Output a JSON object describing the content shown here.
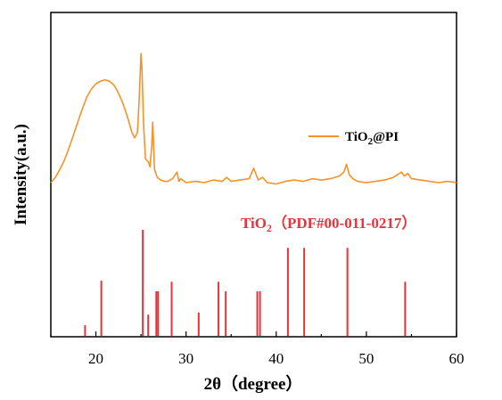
{
  "chart_data": {
    "type": "line",
    "xlabel": "2θ（degree）",
    "ylabel": "Intensity(a.u.)",
    "xlim": [
      15,
      60
    ],
    "x_ticks": [
      "20",
      "30",
      "40",
      "50",
      "60"
    ],
    "grid": false,
    "legend_position": "right",
    "series": [
      {
        "name": "TiO2@PI",
        "legend_main": "TiO",
        "legend_sub": "2",
        "legend_tail": "@PI",
        "color": "#f5922a",
        "x": [
          15.0,
          15.5,
          16.0,
          16.5,
          17.0,
          17.5,
          18.0,
          18.5,
          19.0,
          19.5,
          20.0,
          20.5,
          21.0,
          21.5,
          22.0,
          22.5,
          23.0,
          23.5,
          24.0,
          24.3,
          24.6,
          24.8,
          25.0,
          25.1,
          25.3,
          25.5,
          25.8,
          26.0,
          26.2,
          26.3,
          26.5,
          26.8,
          27.2,
          27.6,
          28.0,
          28.5,
          29.0,
          29.2,
          29.4,
          30.0,
          31.0,
          32.0,
          33.0,
          34.0,
          34.5,
          35.0,
          36.0,
          37.0,
          37.5,
          38.0,
          38.5,
          39.0,
          40.0,
          41.0,
          42.0,
          43.0,
          44.0,
          45.0,
          46.0,
          47.0,
          47.5,
          47.8,
          48.1,
          48.5,
          49.0,
          50.0,
          51.0,
          52.0,
          53.0,
          53.9,
          54.2,
          54.6,
          55.0,
          56.0,
          57.0,
          58.0,
          59.0,
          60.0
        ],
        "y": [
          0.02,
          0.06,
          0.12,
          0.19,
          0.28,
          0.38,
          0.48,
          0.58,
          0.67,
          0.73,
          0.77,
          0.79,
          0.8,
          0.79,
          0.76,
          0.7,
          0.62,
          0.52,
          0.4,
          0.36,
          0.4,
          0.65,
          1.0,
          0.9,
          0.45,
          0.2,
          0.18,
          0.14,
          0.3,
          0.48,
          0.12,
          0.06,
          0.04,
          0.03,
          0.03,
          0.05,
          0.1,
          0.03,
          0.05,
          0.02,
          0.03,
          0.02,
          0.04,
          0.03,
          0.06,
          0.03,
          0.04,
          0.05,
          0.13,
          0.04,
          0.06,
          0.02,
          0.01,
          0.03,
          0.04,
          0.03,
          0.05,
          0.04,
          0.05,
          0.07,
          0.1,
          0.16,
          0.08,
          0.05,
          0.03,
          0.02,
          0.03,
          0.04,
          0.06,
          0.1,
          0.07,
          0.09,
          0.05,
          0.04,
          0.03,
          0.02,
          0.03,
          0.02
        ]
      }
    ],
    "reference": {
      "label_main": "TiO",
      "label_sub": "2",
      "label_tail": "（PDF#00-011-0217）",
      "color": "#e8333b",
      "positions": [
        18.8,
        20.6,
        25.2,
        25.8,
        26.7,
        26.9,
        28.4,
        31.4,
        33.6,
        34.4,
        37.9,
        38.2,
        41.3,
        43.1,
        47.9,
        54.3
      ],
      "intensities": [
        0.1,
        0.52,
        1.0,
        0.2,
        0.42,
        0.42,
        0.51,
        0.22,
        0.51,
        0.42,
        0.42,
        0.42,
        0.83,
        0.83,
        0.83,
        0.51
      ]
    }
  }
}
